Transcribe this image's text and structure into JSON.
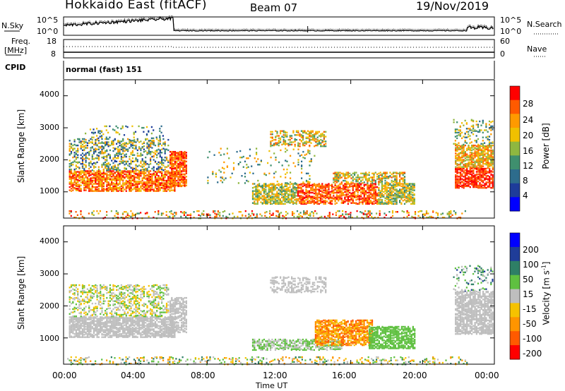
{
  "header": {
    "title": "Hokkaido East (fitACF)",
    "beam": "Beam 07",
    "date": "19/Nov/2019"
  },
  "strip": {
    "nsky_label": "N.Sky",
    "nsearch_label": "N.Search",
    "nsky_ticks": [
      "10^5",
      "10^0"
    ],
    "nsearch_ticks": [
      "10^5",
      "10^0"
    ],
    "freq_label": "Freq.",
    "freq_unit": "[MHz]",
    "freq_ticks": [
      "18",
      "8"
    ],
    "nave_label": "Nave",
    "nave_ticks": [
      "60",
      "0"
    ],
    "cpid_label": "CPID",
    "cpid_value": "normal (fast) 151"
  },
  "colors": {
    "power": [
      "#0000ff",
      "#1e3c9a",
      "#2d6c8c",
      "#3f8f6e",
      "#8fb740",
      "#f0c000",
      "#ff9a00",
      "#ff5a00",
      "#ff0000"
    ],
    "velocity": [
      "#0000ff",
      "#1f3d99",
      "#2e7f66",
      "#5fc040",
      "#bebebe",
      "#f6c200",
      "#ff9500",
      "#ff5a00",
      "#ff0000"
    ]
  },
  "chart_data": [
    {
      "type": "heatmap",
      "quantity": "Power",
      "ylabel": "Slant Range [km]",
      "xlabel": "Time UT",
      "x_ticks": [
        "00:00",
        "04:00",
        "08:00",
        "12:00",
        "16:00",
        "20:00",
        "00:00"
      ],
      "xlim_hours": [
        0,
        24
      ],
      "y_ticks": [
        1000,
        2000,
        3000,
        4000
      ],
      "ylim_km": [
        180,
        4500
      ],
      "colorbar_label": "Power [dB]",
      "colorbar_ticks": [
        "4",
        "8",
        "12",
        "16",
        "20",
        "24",
        "28"
      ],
      "colorbar_range": [
        0,
        30
      ]
    },
    {
      "type": "heatmap",
      "quantity": "Velocity",
      "ylabel": "Slant Range [km]",
      "xlabel": "Time UT",
      "x_ticks": [
        "00:00",
        "04:00",
        "08:00",
        "12:00",
        "16:00",
        "20:00",
        "00:00"
      ],
      "xlim_hours": [
        0,
        24
      ],
      "y_ticks": [
        1000,
        2000,
        3000,
        4000
      ],
      "ylim_km": [
        180,
        4500
      ],
      "colorbar_label": "Velocity [m s",
      "colorbar_label_sup": "-1",
      "colorbar_label_end": "]",
      "colorbar_ticks": [
        "200",
        "100",
        "50",
        "15",
        "-15",
        "-50",
        "-100",
        "-200"
      ]
    }
  ]
}
